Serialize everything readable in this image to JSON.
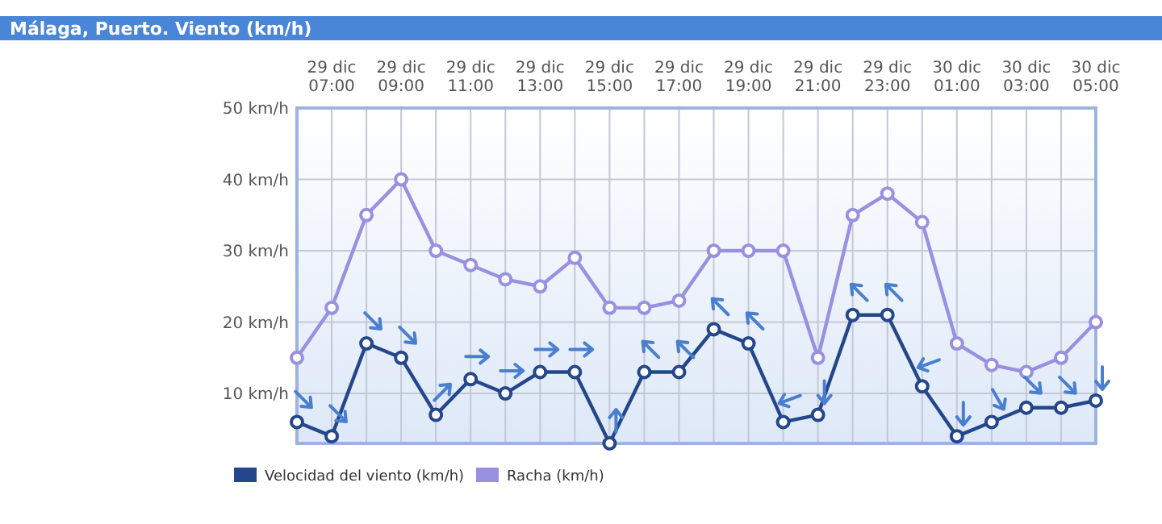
{
  "chart_data": {
    "type": "line",
    "title": "Málaga, Puerto. Viento (km/h)",
    "categories": [
      null,
      "29 dic 07:00",
      null,
      "29 dic 09:00",
      null,
      "29 dic 11:00",
      null,
      "29 dic 13:00",
      null,
      "29 dic 15:00",
      null,
      "29 dic 17:00",
      null,
      "29 dic 19:00",
      null,
      "29 dic 21:00",
      null,
      "29 dic 23:00",
      null,
      "30 dic 01:00",
      null,
      "30 dic 03:00",
      null,
      "30 dic 05:00"
    ],
    "series": [
      {
        "name": "Velocidad del viento (km/h)",
        "color": "#23478a",
        "values": [
          6,
          4,
          17,
          15,
          7,
          12,
          10,
          13,
          13,
          3,
          13,
          13,
          19,
          17,
          6,
          7,
          21,
          21,
          11,
          4,
          6,
          8,
          8,
          9
        ]
      },
      {
        "name": "Racha (km/h)",
        "color": "#9890e0",
        "values": [
          15,
          22,
          35,
          40,
          30,
          28,
          26,
          25,
          29,
          22,
          22,
          23,
          30,
          30,
          30,
          15,
          35,
          38,
          34,
          17,
          14,
          13,
          15,
          20
        ]
      }
    ],
    "ylim": [
      3,
      50
    ],
    "yticks": [
      {
        "value": 10,
        "label": "10 km/h"
      },
      {
        "value": 20,
        "label": "20 km/h"
      },
      {
        "value": 30,
        "label": "30 km/h"
      },
      {
        "value": 40,
        "label": "40 km/h"
      },
      {
        "value": 50,
        "label": "50 km/h"
      }
    ],
    "grid": true,
    "legend": "bottom left",
    "marker": "circle",
    "line_style": "solid"
  }
}
